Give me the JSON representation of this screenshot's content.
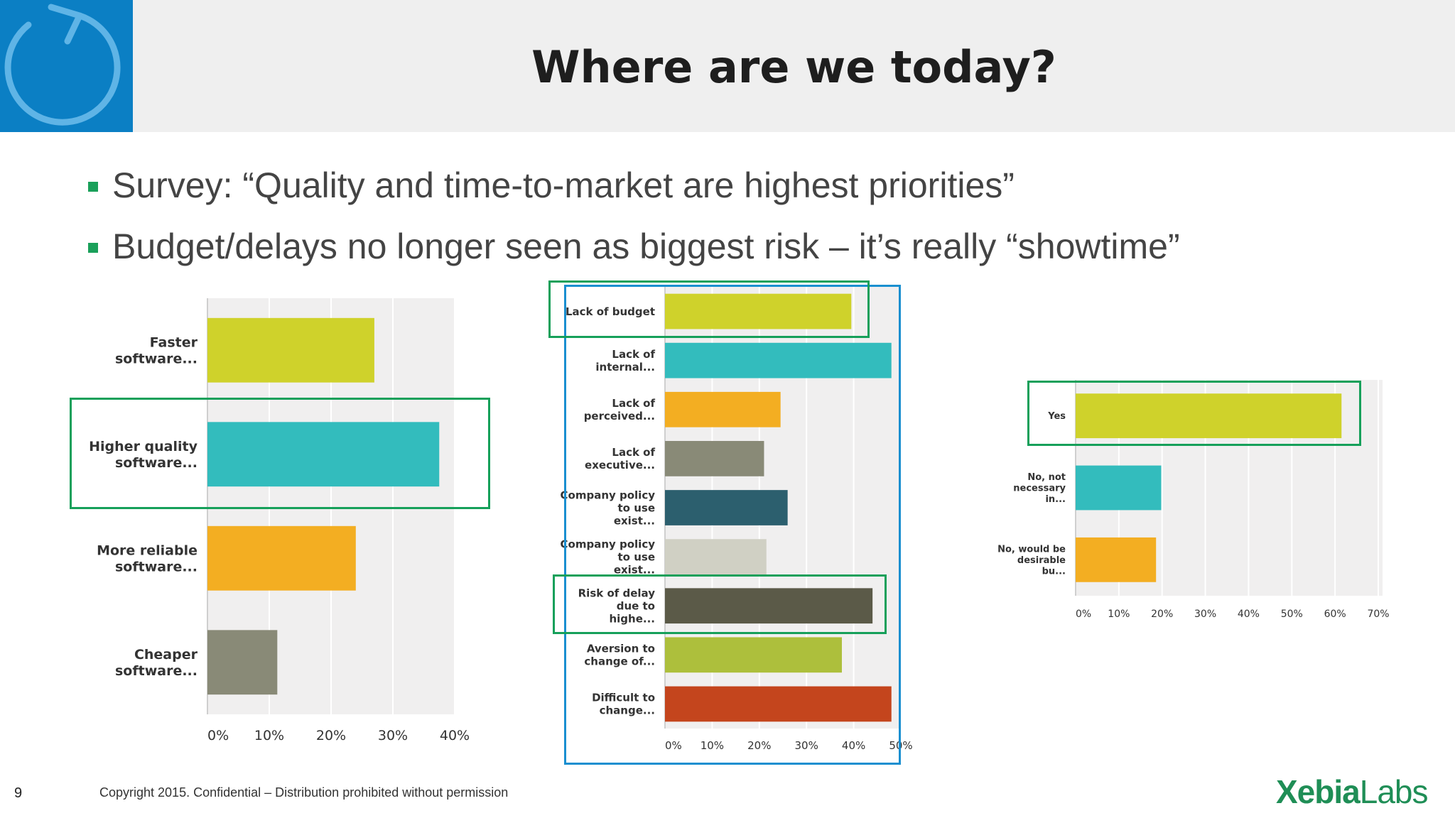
{
  "slide": {
    "title": "Where are we today?",
    "bullets": [
      "Survey: “Quality and time-to-market are highest priorities”",
      "Budget/delays no longer seen as biggest risk – it’s really “showtime”"
    ],
    "page_number": "9",
    "footer": "Copyright 2015.  Confidential – Distribution prohibited without permission",
    "brand_bold": "Xebia",
    "brand_light": "Labs",
    "colors": {
      "accent_green": "#16a05a",
      "accent_blue": "#1a8fd0",
      "logo_blue": "#0b7fc4"
    },
    "logo_icon": "refresh-icon"
  },
  "chart_data": [
    {
      "type": "bar",
      "orientation": "horizontal",
      "categories": [
        "Faster software...",
        "Higher quality software...",
        "More reliable software...",
        "Cheaper software..."
      ],
      "values": [
        27,
        37.5,
        24,
        11.3
      ],
      "colors": [
        "#cfd22b",
        "#33bcbd",
        "#f3ae22",
        "#898a77"
      ],
      "xlim": [
        0,
        40
      ],
      "xticks": [
        "0%",
        "10%",
        "20%",
        "30%",
        "40%"
      ],
      "highlight": "Higher quality software..."
    },
    {
      "type": "bar",
      "orientation": "horizontal",
      "categories": [
        "Lack of budget",
        "Lack of internal...",
        "Lack of perceived...",
        "Lack of executive...",
        "Company policy to use exist...",
        "Company policy to use exist...",
        "Risk of delay due to highe...",
        "Aversion to change of...",
        "Difficult to change..."
      ],
      "values": [
        39.5,
        48,
        24.5,
        21,
        26,
        21.5,
        44,
        37.5,
        48
      ],
      "colors": [
        "#cfd22b",
        "#33bcbd",
        "#f3ae22",
        "#898a77",
        "#2c5f6e",
        "#d0d0c4",
        "#5b5a48",
        "#adbf3c",
        "#c4451d"
      ],
      "xlim": [
        0,
        50
      ],
      "xticks": [
        "0%",
        "10%",
        "20%",
        "30%",
        "40%",
        "50%"
      ],
      "highlight": [
        "Lack of budget",
        "Risk of delay due to highe..."
      ]
    },
    {
      "type": "bar",
      "orientation": "horizontal",
      "categories": [
        "Yes",
        "No, not necessary in...",
        "No, would be desirable bu..."
      ],
      "values": [
        61.5,
        19.8,
        18.6
      ],
      "colors": [
        "#cfd22b",
        "#33bcbd",
        "#f3ae22"
      ],
      "xlim": [
        0,
        70
      ],
      "xticks": [
        "0%",
        "10%",
        "20%",
        "30%",
        "40%",
        "50%",
        "60%",
        "70%"
      ],
      "highlight": "Yes"
    }
  ]
}
